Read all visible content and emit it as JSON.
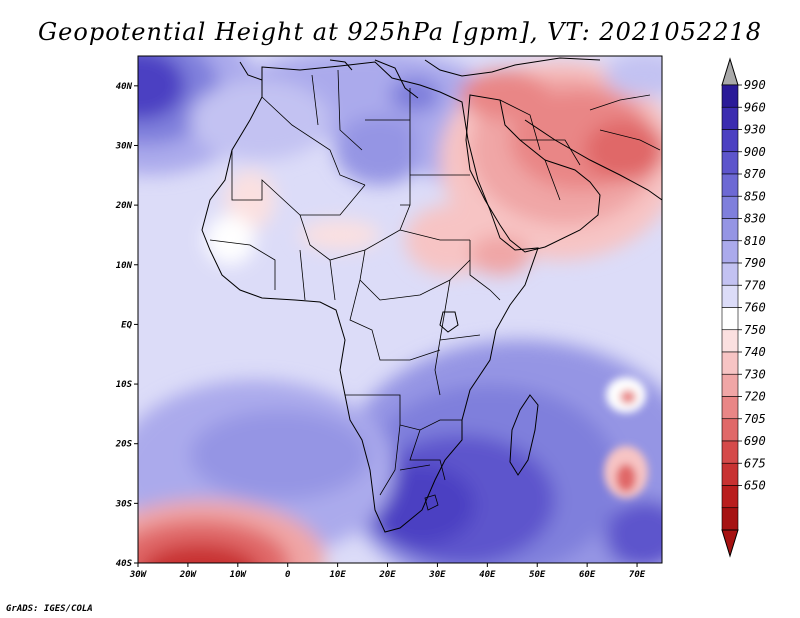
{
  "title": "Geopotential Height at 925hPa [gpm], VT: 2021052218",
  "credit": "GrADS: IGES/COLA",
  "map": {
    "lon_range": [
      -30,
      75
    ],
    "lat_range": [
      -40,
      45
    ],
    "lon_ticks": [
      {
        "lon": -30,
        "label": "30W"
      },
      {
        "lon": -20,
        "label": "20W"
      },
      {
        "lon": -10,
        "label": "10W"
      },
      {
        "lon": 0,
        "label": "0"
      },
      {
        "lon": 10,
        "label": "10E"
      },
      {
        "lon": 20,
        "label": "20E"
      },
      {
        "lon": 30,
        "label": "30E"
      },
      {
        "lon": 40,
        "label": "40E"
      },
      {
        "lon": 50,
        "label": "50E"
      },
      {
        "lon": 60,
        "label": "60E"
      },
      {
        "lon": 70,
        "label": "70E"
      }
    ],
    "lat_ticks": [
      {
        "lat": 40,
        "label": "40N"
      },
      {
        "lat": 30,
        "label": "30N"
      },
      {
        "lat": 20,
        "label": "20N"
      },
      {
        "lat": 10,
        "label": "10N"
      },
      {
        "lat": 0,
        "label": "EQ"
      },
      {
        "lat": -10,
        "label": "10S"
      },
      {
        "lat": -20,
        "label": "20S"
      },
      {
        "lat": -30,
        "label": "30S"
      },
      {
        "lat": -40,
        "label": "40S"
      }
    ]
  },
  "colorbar": {
    "levels": [
      990,
      960,
      930,
      900,
      870,
      850,
      830,
      810,
      790,
      770,
      760,
      750,
      740,
      730,
      720,
      705,
      690,
      675,
      650
    ],
    "colors": [
      "#2a1a98",
      "#3b2cb0",
      "#4c40c2",
      "#5d55cc",
      "#6d69d4",
      "#7f7fdc",
      "#9595e4",
      "#abaaec",
      "#c3c2f2",
      "#dcdcf8",
      "#ffffff",
      "#fbe0e0",
      "#f7c4c4",
      "#f0a6a6",
      "#e98686",
      "#e06868",
      "#d54a4a",
      "#c83232",
      "#b91e1e",
      "#a61212"
    ],
    "top_arrow_color": "#a9a9a9",
    "bottom_arrow_color": "#a61212"
  }
}
